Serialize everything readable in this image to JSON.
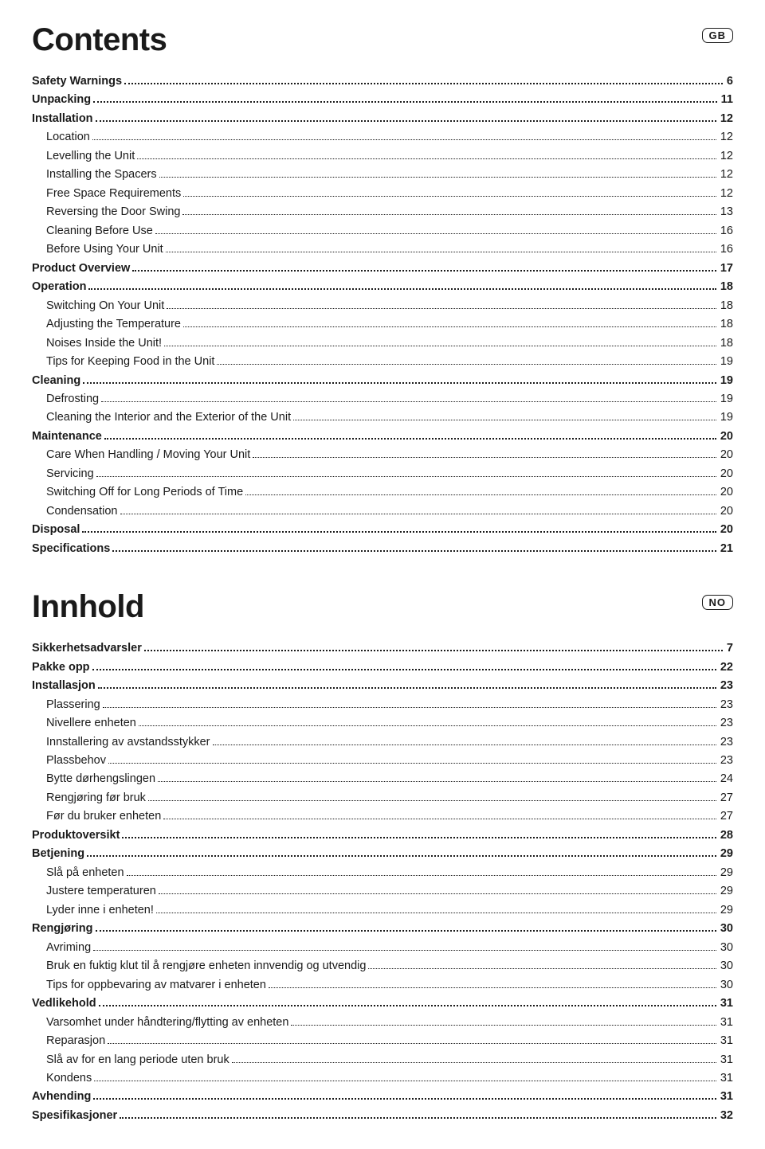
{
  "sections": [
    {
      "title": "Contents",
      "lang_badge": "GB",
      "entries": [
        {
          "label": "Safety Warnings",
          "page": "6",
          "level": 0
        },
        {
          "label": "Unpacking",
          "page": "11",
          "level": 0
        },
        {
          "label": "Installation",
          "page": "12",
          "level": 0
        },
        {
          "label": "Location",
          "page": "12",
          "level": 1
        },
        {
          "label": "Levelling the Unit",
          "page": "12",
          "level": 1
        },
        {
          "label": "Installing the Spacers",
          "page": "12",
          "level": 1
        },
        {
          "label": "Free Space Requirements",
          "page": "12",
          "level": 1
        },
        {
          "label": "Reversing the Door Swing",
          "page": "13",
          "level": 1
        },
        {
          "label": "Cleaning Before Use",
          "page": "16",
          "level": 1
        },
        {
          "label": "Before Using Your Unit",
          "page": "16",
          "level": 1
        },
        {
          "label": "Product Overview",
          "page": "17",
          "level": 0
        },
        {
          "label": "Operation",
          "page": "18",
          "level": 0
        },
        {
          "label": "Switching On Your Unit",
          "page": "18",
          "level": 1
        },
        {
          "label": "Adjusting the Temperature",
          "page": "18",
          "level": 1
        },
        {
          "label": "Noises Inside the Unit!",
          "page": "18",
          "level": 1
        },
        {
          "label": "Tips for Keeping Food in the Unit",
          "page": "19",
          "level": 1
        },
        {
          "label": "Cleaning",
          "page": "19",
          "level": 0
        },
        {
          "label": "Defrosting",
          "page": "19",
          "level": 1
        },
        {
          "label": "Cleaning the Interior and the Exterior of the Unit",
          "page": "19",
          "level": 1
        },
        {
          "label": "Maintenance",
          "page": "20",
          "level": 0
        },
        {
          "label": "Care When Handling / Moving Your Unit",
          "page": "20",
          "level": 1
        },
        {
          "label": "Servicing",
          "page": "20",
          "level": 1
        },
        {
          "label": "Switching Off for Long Periods of Time",
          "page": "20",
          "level": 1
        },
        {
          "label": "Condensation",
          "page": "20",
          "level": 1
        },
        {
          "label": "Disposal",
          "page": "20",
          "level": 0
        },
        {
          "label": "Specifications",
          "page": "21",
          "level": 0
        }
      ]
    },
    {
      "title": "Innhold",
      "lang_badge": "NO",
      "entries": [
        {
          "label": "Sikkerhetsadvarsler",
          "page": "7",
          "level": 0
        },
        {
          "label": "Pakke opp",
          "page": "22",
          "level": 0
        },
        {
          "label": "Installasjon",
          "page": "23",
          "level": 0
        },
        {
          "label": "Plassering",
          "page": "23",
          "level": 1
        },
        {
          "label": "Nivellere enheten",
          "page": "23",
          "level": 1
        },
        {
          "label": "Innstallering av avstandsstykker",
          "page": "23",
          "level": 1
        },
        {
          "label": "Plassbehov",
          "page": "23",
          "level": 1
        },
        {
          "label": "Bytte dørhengslingen",
          "page": "24",
          "level": 1
        },
        {
          "label": "Rengjøring før bruk",
          "page": "27",
          "level": 1
        },
        {
          "label": "Før du bruker enheten",
          "page": "27",
          "level": 1
        },
        {
          "label": "Produktoversikt",
          "page": "28",
          "level": 0
        },
        {
          "label": "Betjening",
          "page": "29",
          "level": 0
        },
        {
          "label": "Slå på enheten",
          "page": "29",
          "level": 1
        },
        {
          "label": "Justere temperaturen",
          "page": "29",
          "level": 1
        },
        {
          "label": "Lyder inne i enheten!",
          "page": "29",
          "level": 1
        },
        {
          "label": "Rengjøring",
          "page": "30",
          "level": 0
        },
        {
          "label": "Avriming",
          "page": "30",
          "level": 1
        },
        {
          "label": "Bruk en fuktig klut til å rengjøre enheten innvendig og utvendig",
          "page": "30",
          "level": 1
        },
        {
          "label": "Tips for oppbevaring av matvarer i enheten",
          "page": "30",
          "level": 1
        },
        {
          "label": "Vedlikehold",
          "page": "31",
          "level": 0
        },
        {
          "label": "Varsomhet under håndtering/flytting av enheten",
          "page": "31",
          "level": 1
        },
        {
          "label": "Reparasjon",
          "page": "31",
          "level": 1
        },
        {
          "label": "Slå av for en lang periode uten bruk",
          "page": "31",
          "level": 1
        },
        {
          "label": "Kondens",
          "page": "31",
          "level": 1
        },
        {
          "label": "Avhending",
          "page": "31",
          "level": 0
        },
        {
          "label": "Spesifikasjoner",
          "page": "32",
          "level": 0
        }
      ]
    }
  ],
  "colors": {
    "text": "#1a1a1a",
    "background": "#ffffff",
    "dots": "#1a1a1a",
    "badge_border": "#1a1a1a"
  },
  "typography": {
    "title_fontsize": 40,
    "body_fontsize": 14.5,
    "badge_fontsize": 13,
    "font_family": "Myriad Pro / Segoe UI / Arial"
  }
}
